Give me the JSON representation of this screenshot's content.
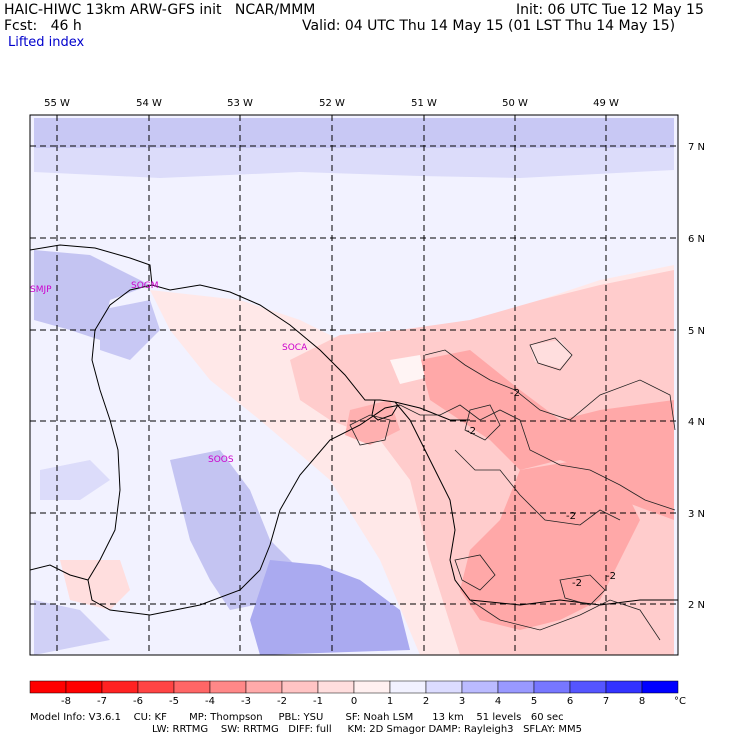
{
  "header": {
    "title_left": "HAIC-HIWC 13km ARW-GFS init   NCAR/MMM",
    "init": "Init: 06 UTC Tue 12 May 15",
    "fcst": "Fcst:   46 h",
    "valid": "Valid: 04 UTC Thu 14 May 15 (01 LST Thu 14 May 15)",
    "field": "Lifted index"
  },
  "map": {
    "lon_labels": [
      "55 W",
      "54 W",
      "53 W",
      "52 W",
      "51 W",
      "50 W",
      "49 W"
    ],
    "lat_labels": [
      "7 N",
      "6 N",
      "5 N",
      "4 N",
      "3 N",
      "2 N"
    ],
    "stations": [
      "SMJP",
      "SOGM",
      "SOCA",
      "SOOS"
    ],
    "contour_labels": [
      "-2",
      "-2",
      "-2",
      "-2",
      "-2"
    ]
  },
  "colorbar": {
    "ticks": [
      "-8",
      "-7",
      "-6",
      "-5",
      "-4",
      "-3",
      "-2",
      "-1",
      "0",
      "1",
      "2",
      "3",
      "4",
      "5",
      "6",
      "7",
      "8"
    ],
    "unit": "°C",
    "colors": [
      "#ff0000",
      "#ff2222",
      "#ff4444",
      "#ff6666",
      "#ff8888",
      "#ffaaaa",
      "#ffc4c4",
      "#ffdede",
      "#fff0f0",
      "#f2f2ff",
      "#dcdcff",
      "#bbbbff",
      "#9999ff",
      "#7777ff",
      "#5555ff",
      "#3333ff",
      "#0000ff"
    ]
  },
  "footer": {
    "line1": "Model Info: V3.6.1    CU: KF       MP: Thompson     PBL: YSU       SF: Noah LSM      13 km    51 levels   60 sec",
    "line2": "LW: RRTMG    SW: RRTMG   DIFF: full     KM: 2D Smagor DAMP: Rayleigh3   SFLAY: MM5"
  }
}
